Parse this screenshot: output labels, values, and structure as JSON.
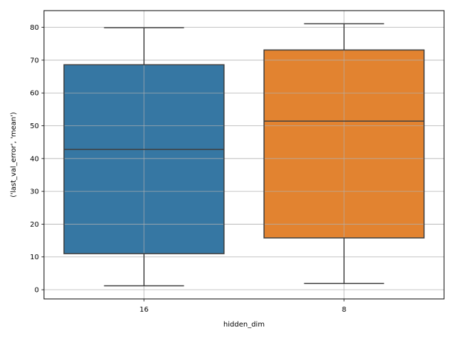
{
  "chart_data": {
    "type": "box",
    "title": "",
    "xlabel": "hidden_dim",
    "ylabel": "('last_val_error', 'mean')",
    "categories": [
      "16",
      "8"
    ],
    "boxes": [
      {
        "category": "16",
        "whisker_low": 1.2,
        "q1": 11.0,
        "median": 42.8,
        "q3": 68.6,
        "whisker_high": 79.9,
        "color": "#3274a1"
      },
      {
        "category": "8",
        "whisker_low": 1.9,
        "q1": 15.8,
        "median": 51.4,
        "q3": 73.1,
        "whisker_high": 81.1,
        "color": "#e1812c"
      }
    ],
    "yticks": [
      0,
      10,
      20,
      30,
      40,
      50,
      60,
      70,
      80
    ],
    "ylim": [
      -2.8,
      85.1
    ],
    "grid": true,
    "line_color": "#3f3f3f"
  }
}
